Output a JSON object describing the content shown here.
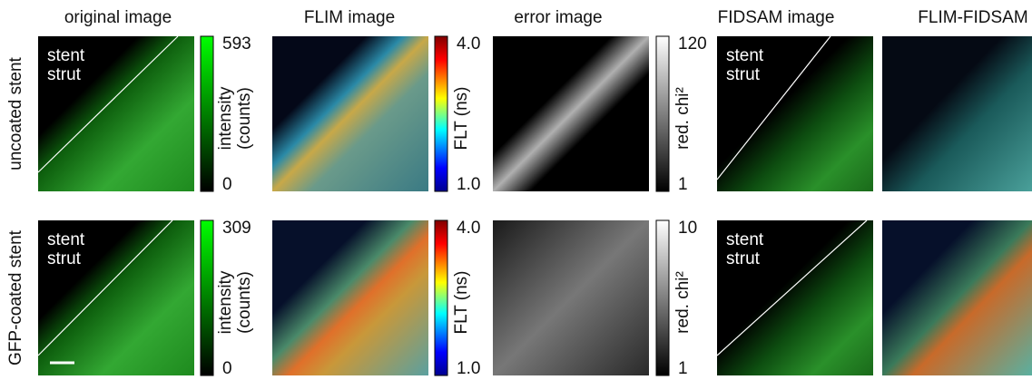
{
  "columns": [
    "original image",
    "FLIM image",
    "error image",
    "FIDSAM image",
    "FLIM-FIDSAM"
  ],
  "annotation": [
    "stent",
    "strut"
  ],
  "colorbar_titles": {
    "intensity": [
      "intensity",
      "(counts)"
    ],
    "flt": "FLT (ns)",
    "chi": "red. chi²"
  },
  "rows": [
    {
      "label": "uncoated stent",
      "intensity_max": "593",
      "intensity_min": "0",
      "flt_max": "4.0",
      "flt_min": "1.0",
      "chi_max": "120",
      "chi_min": "1"
    },
    {
      "label": "GFP-coated stent",
      "intensity_max": "309",
      "intensity_min": "0",
      "flt_max": "4.0",
      "flt_min": "1.0",
      "chi_max": "10",
      "chi_min": "1"
    }
  ]
}
